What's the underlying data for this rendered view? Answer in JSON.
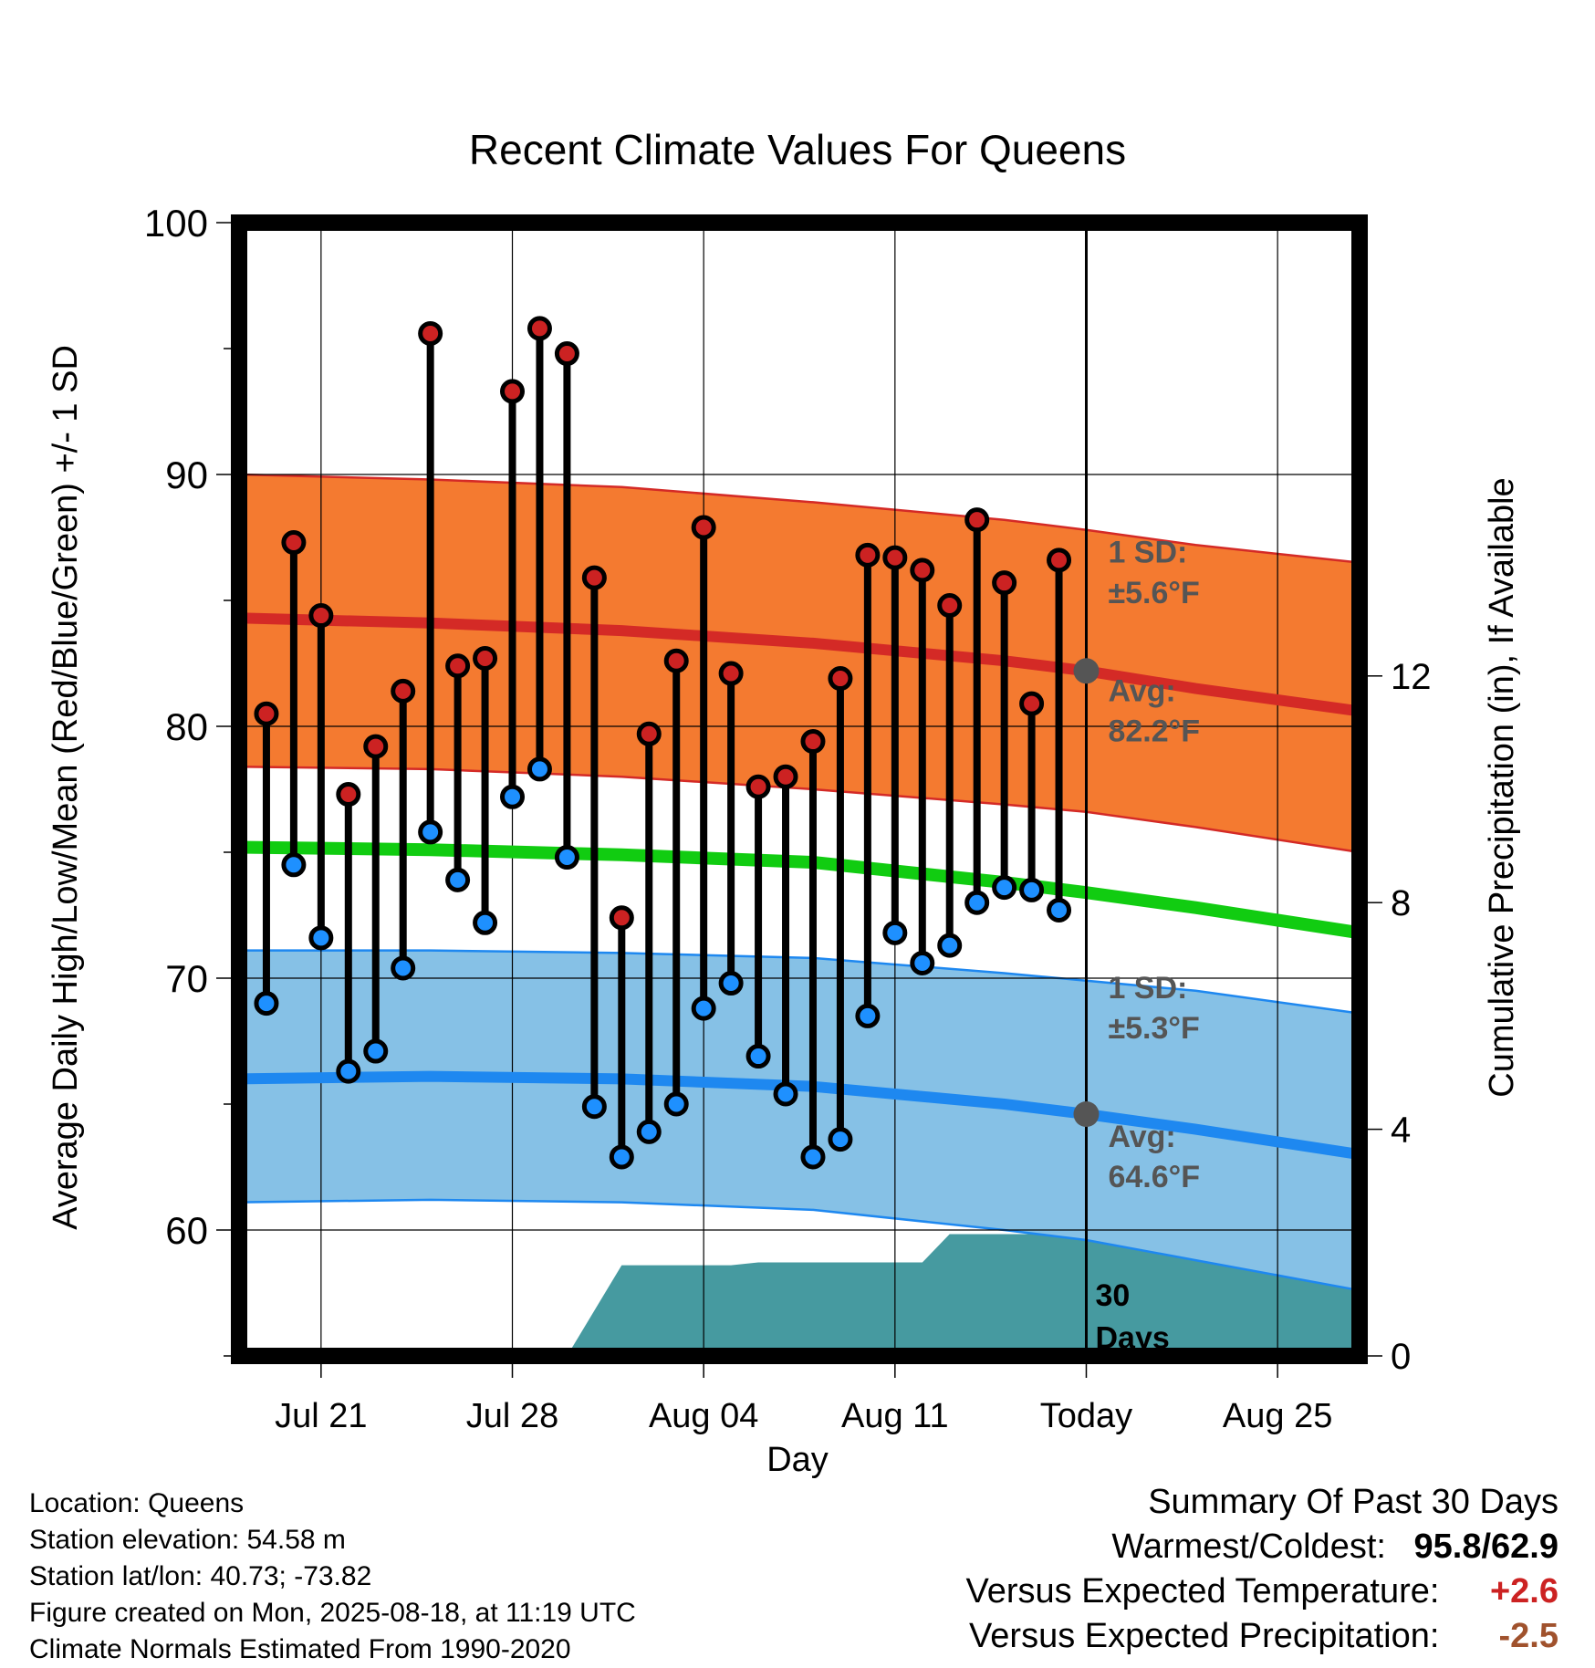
{
  "chart_data": {
    "type": "line",
    "title": "Recent Climate Values For Queens",
    "xlabel": "Day",
    "ylabel": "Average Daily High/Low/Mean (Red/Blue/Green) +/- 1 SD",
    "y2label": "Cumulative Precipitation (in), If Available",
    "ylim": [
      55,
      100
    ],
    "y2lim": [
      0,
      20
    ],
    "yticks": [
      60,
      70,
      80,
      90,
      100
    ],
    "y2ticks": [
      0,
      4,
      8,
      12
    ],
    "x_start_day": "Jul 18",
    "x_end_day": "Aug 28",
    "x_ticks": [
      {
        "day": "Jul 21",
        "label": "Jul 21"
      },
      {
        "day": "Jul 28",
        "label": "Jul 28"
      },
      {
        "day": "Aug 04",
        "label": "Aug 04"
      },
      {
        "day": "Aug 11",
        "label": "Aug 11"
      },
      {
        "day": "Aug 18",
        "label": "Today"
      },
      {
        "day": "Aug 25",
        "label": "Aug 25"
      }
    ],
    "today": "Aug 18",
    "days": [
      "Jul 19",
      "Jul 20",
      "Jul 21",
      "Jul 22",
      "Jul 23",
      "Jul 24",
      "Jul 25",
      "Jul 26",
      "Jul 27",
      "Jul 28",
      "Jul 29",
      "Jul 30",
      "Jul 31",
      "Aug 01",
      "Aug 02",
      "Aug 03",
      "Aug 04",
      "Aug 05",
      "Aug 06",
      "Aug 07",
      "Aug 08",
      "Aug 09",
      "Aug 10",
      "Aug 11",
      "Aug 12",
      "Aug 13",
      "Aug 14",
      "Aug 15",
      "Aug 16",
      "Aug 17"
    ],
    "series": [
      {
        "name": "High",
        "color": "#cc2222",
        "values": [
          80.5,
          87.3,
          84.4,
          77.3,
          79.2,
          81.4,
          95.6,
          82.4,
          82.7,
          93.3,
          95.8,
          94.8,
          85.9,
          72.4,
          79.7,
          82.6,
          87.9,
          82.1,
          77.6,
          78.0,
          79.4,
          81.9,
          86.8,
          86.7,
          86.2,
          84.8,
          88.2,
          85.7,
          80.9,
          86.6
        ]
      },
      {
        "name": "Low",
        "color": "#1e90ff",
        "values": [
          69.0,
          74.5,
          71.6,
          66.3,
          67.1,
          70.4,
          75.8,
          73.9,
          72.2,
          77.2,
          78.3,
          74.8,
          64.9,
          62.9,
          63.9,
          65.0,
          68.8,
          69.8,
          66.9,
          65.4,
          62.9,
          63.6,
          68.5,
          71.8,
          70.6,
          71.3,
          73.0,
          73.6,
          73.5,
          72.7
        ]
      }
    ],
    "normals": {
      "sample_days": [
        "Jul 18",
        "Jul 25",
        "Aug 01",
        "Aug 08",
        "Aug 15",
        "Aug 18",
        "Aug 22",
        "Aug 28"
      ],
      "high_avg": [
        84.3,
        84.1,
        83.8,
        83.3,
        82.6,
        82.2,
        81.5,
        80.6
      ],
      "high_upper": [
        90.0,
        89.8,
        89.5,
        88.9,
        88.2,
        87.8,
        87.2,
        86.5
      ],
      "high_lower": [
        78.4,
        78.3,
        78.0,
        77.5,
        76.9,
        76.6,
        76.0,
        75.0
      ],
      "low_avg": [
        66.0,
        66.1,
        66.0,
        65.7,
        65.0,
        64.6,
        64.0,
        63.0
      ],
      "low_upper": [
        71.1,
        71.1,
        71.0,
        70.8,
        70.2,
        69.9,
        69.5,
        68.6
      ],
      "low_lower": [
        61.1,
        61.2,
        61.1,
        60.8,
        60.0,
        59.6,
        58.8,
        57.6
      ],
      "mean_avg": [
        75.2,
        75.1,
        74.9,
        74.6,
        73.8,
        73.4,
        72.8,
        71.8
      ]
    },
    "precipitation": {
      "color": "#469aa0",
      "days": [
        "Jul 18",
        "Jul 30",
        "Jul 31",
        "Aug 01",
        "Aug 02",
        "Aug 03",
        "Aug 04",
        "Aug 05",
        "Aug 06",
        "Aug 07",
        "Aug 08",
        "Aug 09",
        "Aug 10",
        "Aug 11",
        "Aug 12",
        "Aug 13",
        "Aug 14",
        "Aug 15",
        "Aug 16",
        "Aug 17",
        "Aug 28"
      ],
      "values": [
        0,
        0,
        0.8,
        1.6,
        1.6,
        1.6,
        1.6,
        1.6,
        1.65,
        1.65,
        1.65,
        1.65,
        1.65,
        1.65,
        1.65,
        2.15,
        2.15,
        2.15,
        2.15,
        2.3,
        2.3
      ]
    },
    "annotations": [
      {
        "text": "1 SD:",
        "x_day": "Aug 19",
        "y": 86.5
      },
      {
        "text": "±5.6°F",
        "x_day": "Aug 19",
        "y": 84.9
      },
      {
        "text": "Avg:",
        "x_day": "Aug 19",
        "y": 81.0
      },
      {
        "text": "82.2°F",
        "x_day": "Aug 19",
        "y": 79.4
      },
      {
        "text": "1 SD:",
        "x_day": "Aug 19",
        "y": 69.2
      },
      {
        "text": "±5.3°F",
        "x_day": "Aug 19",
        "y": 67.6
      },
      {
        "text": "Avg:",
        "x_day": "Aug 19",
        "y": 63.3
      },
      {
        "text": "64.6°F",
        "x_day": "Aug 19",
        "y": 61.7
      },
      {
        "text": "30",
        "x_day": "Aug 18",
        "y": 57.0
      },
      {
        "text": "Days",
        "x_day": "Aug 18",
        "y": 55.3
      }
    ],
    "today_markers": [
      82.2,
      64.6
    ],
    "grid": true
  },
  "footer": {
    "location": "Location: Queens",
    "elevation": "Station elevation: 54.58 m",
    "latlon": "Station lat/lon: 40.73; -73.82",
    "created": "Figure created on Mon, 2025-08-18, at 11:19 UTC",
    "normals": "Climate Normals Estimated From 1990-2020"
  },
  "summary": {
    "title": "Summary Of Past 30 Days",
    "warmest_label": "Warmest/Coldest:",
    "warmest_value": "95.8/62.9",
    "temp_label": "Versus Expected Temperature:",
    "temp_value": "+2.6",
    "temp_color": "#cc2222",
    "precip_label": "Versus Expected Precipitation:",
    "precip_value": "-2.5",
    "precip_color": "#a0522d"
  }
}
